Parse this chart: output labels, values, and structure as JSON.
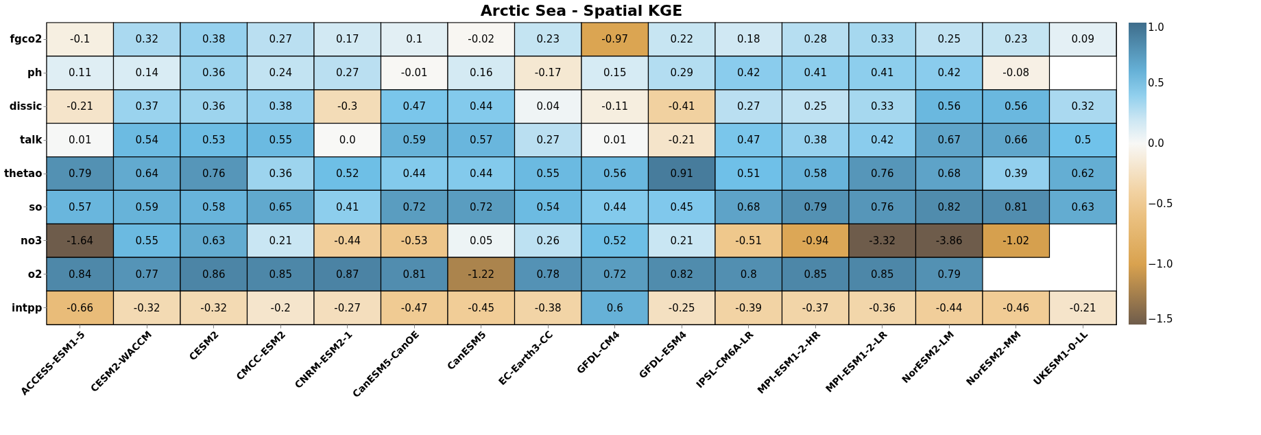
{
  "chart_data": {
    "type": "heatmap",
    "title": "Arctic Sea - Spatial KGE",
    "categories": [
      "ACCESS-ESM1-5",
      "CESM2-WACCM",
      "CESM2",
      "CMCC-ESM2",
      "CNRM-ESM2-1",
      "CanESM5-CanOE",
      "CanESM5",
      "EC-Earth3-CC",
      "GFDL-CM4",
      "GFDL-ESM4",
      "IPSL-CM6A-LR",
      "MPI-ESM1-2-HR",
      "MPI-ESM1-2-LR",
      "NorESM2-LM",
      "NorESM2-MM",
      "UKESM1-0-LL"
    ],
    "y_categories": [
      "fgco2",
      "ph",
      "dissic",
      "talk",
      "thetao",
      "so",
      "no3",
      "o2",
      "intpp"
    ],
    "cells": [
      [
        -0.1,
        0.32,
        0.38,
        0.27,
        0.17,
        0.1,
        -0.02,
        0.23,
        -0.97,
        0.22,
        0.18,
        0.28,
        0.33,
        0.25,
        0.23,
        0.09
      ],
      [
        0.11,
        0.14,
        0.36,
        0.24,
        0.27,
        -0.01,
        0.16,
        -0.17,
        0.15,
        0.29,
        0.42,
        0.41,
        0.41,
        0.42,
        -0.08,
        null
      ],
      [
        -0.21,
        0.37,
        0.36,
        0.38,
        -0.3,
        0.47,
        0.44,
        0.04,
        -0.11,
        -0.41,
        0.27,
        0.25,
        0.33,
        0.56,
        0.56,
        0.32
      ],
      [
        0.01,
        0.54,
        0.53,
        0.55,
        0.0,
        0.59,
        0.57,
        0.27,
        0.01,
        -0.21,
        0.47,
        0.38,
        0.42,
        0.67,
        0.66,
        0.5
      ],
      [
        0.79,
        0.64,
        0.76,
        0.36,
        0.52,
        0.44,
        0.44,
        0.55,
        0.56,
        0.91,
        0.51,
        0.58,
        0.76,
        0.68,
        0.39,
        0.62
      ],
      [
        0.57,
        0.59,
        0.58,
        0.65,
        0.41,
        0.72,
        0.72,
        0.54,
        0.44,
        0.45,
        0.68,
        0.79,
        0.76,
        0.82,
        0.81,
        0.63
      ],
      [
        -1.64,
        0.55,
        0.63,
        0.21,
        -0.44,
        -0.53,
        0.05,
        0.26,
        0.52,
        0.21,
        -0.51,
        -0.94,
        -3.32,
        -3.86,
        -1.02,
        null
      ],
      [
        0.84,
        0.77,
        0.86,
        0.85,
        0.87,
        0.81,
        -1.22,
        0.78,
        0.72,
        0.82,
        0.8,
        0.85,
        0.85,
        0.79,
        null,
        null
      ],
      [
        -0.66,
        -0.32,
        -0.32,
        -0.2,
        -0.27,
        -0.47,
        -0.45,
        -0.38,
        0.6,
        -0.25,
        -0.39,
        -0.37,
        -0.36,
        -0.44,
        -0.46,
        -0.21
      ]
    ],
    "cell_labels": [
      [
        "-0.1",
        "0.32",
        "0.38",
        "0.27",
        "0.17",
        "0.1",
        "-0.02",
        "0.23",
        "-0.97",
        "0.22",
        "0.18",
        "0.28",
        "0.33",
        "0.25",
        "0.23",
        "0.09"
      ],
      [
        "0.11",
        "0.14",
        "0.36",
        "0.24",
        "0.27",
        "-0.01",
        "0.16",
        "-0.17",
        "0.15",
        "0.29",
        "0.42",
        "0.41",
        "0.41",
        "0.42",
        "-0.08",
        null
      ],
      [
        "-0.21",
        "0.37",
        "0.36",
        "0.38",
        "-0.3",
        "0.47",
        "0.44",
        "0.04",
        "-0.11",
        "-0.41",
        "0.27",
        "0.25",
        "0.33",
        "0.56",
        "0.56",
        "0.32"
      ],
      [
        "0.01",
        "0.54",
        "0.53",
        "0.55",
        "0.0",
        "0.59",
        "0.57",
        "0.27",
        "0.01",
        "-0.21",
        "0.47",
        "0.38",
        "0.42",
        "0.67",
        "0.66",
        "0.5"
      ],
      [
        "0.79",
        "0.64",
        "0.76",
        "0.36",
        "0.52",
        "0.44",
        "0.44",
        "0.55",
        "0.56",
        "0.91",
        "0.51",
        "0.58",
        "0.76",
        "0.68",
        "0.39",
        "0.62"
      ],
      [
        "0.57",
        "0.59",
        "0.58",
        "0.65",
        "0.41",
        "0.72",
        "0.72",
        "0.54",
        "0.44",
        "0.45",
        "0.68",
        "0.79",
        "0.76",
        "0.82",
        "0.81",
        "0.63"
      ],
      [
        "-1.64",
        "0.55",
        "0.63",
        "0.21",
        "-0.44",
        "-0.53",
        "0.05",
        "0.26",
        "0.52",
        "0.21",
        "-0.51",
        "-0.94",
        "-3.32",
        "-3.86",
        "-1.02",
        null
      ],
      [
        "0.84",
        "0.77",
        "0.86",
        "0.85",
        "0.87",
        "0.81",
        "-1.22",
        "0.78",
        "0.72",
        "0.82",
        "0.8",
        "0.85",
        "0.85",
        "0.79",
        null,
        null
      ],
      [
        "-0.66",
        "-0.32",
        "-0.32",
        "-0.2",
        "-0.27",
        "-0.47",
        "-0.45",
        "-0.38",
        "0.6",
        "-0.25",
        "-0.39",
        "-0.37",
        "-0.36",
        "-0.44",
        "-0.46",
        "-0.21"
      ]
    ],
    "clim": [
      -1.5,
      1.0
    ],
    "cticks": [
      {
        "value": 1,
        "label": "1.0"
      },
      {
        "value": 0.5,
        "label": "0.5"
      },
      {
        "value": 0,
        "label": "0.0"
      },
      {
        "value": -0.5,
        "label": "−0.5"
      },
      {
        "value": -1,
        "label": "−1.0"
      },
      {
        "value": -1.5,
        "label": "−1.5"
      }
    ]
  }
}
